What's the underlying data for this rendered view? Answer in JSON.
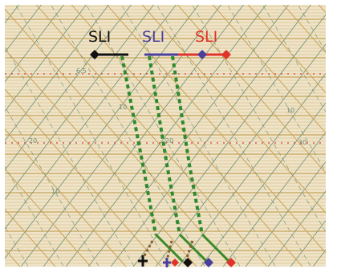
{
  "labels": [
    {
      "text": "SLI",
      "color": "#111111"
    },
    {
      "text": "SLI",
      "color": "#4a3f9c"
    },
    {
      "text": "SLI",
      "color": "#e0332a"
    }
  ],
  "grid_numbers": [
    "6.5",
    "10",
    "20",
    "10",
    "20",
    "10",
    "30"
  ],
  "colors": {
    "paper": "#efe4c9",
    "grid_brown": "#c8a45a",
    "grid_green": "#6f8f76",
    "dotted_red": "#d23b3b",
    "dashed_green": "#2e8a2e",
    "solid_green": "#3a8a2a",
    "brown_dots": "#8b5a2b",
    "black": "#111111",
    "purple": "#4a3f9c",
    "red": "#e0332a"
  }
}
